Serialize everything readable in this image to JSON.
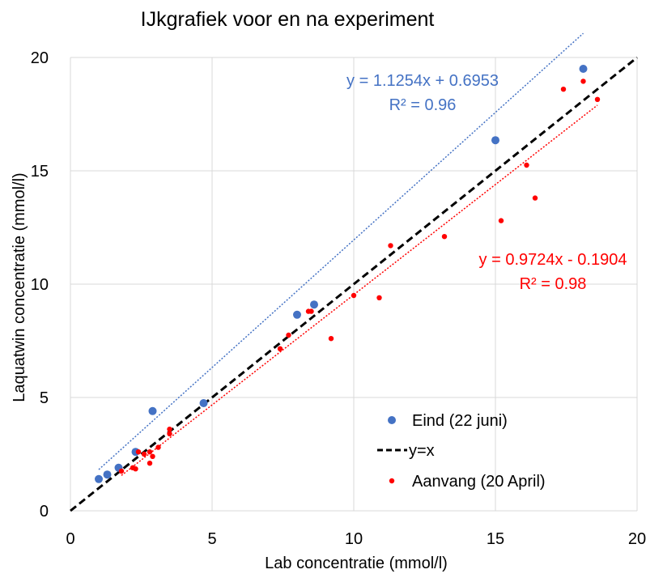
{
  "chart_data": {
    "type": "scatter",
    "title": "IJkgrafiek voor en na experiment",
    "xlabel": "Lab concentratie (mmol/l)",
    "ylabel": "Laquatwin concentratie (mmol/l)",
    "xlim": [
      0,
      20
    ],
    "ylim": [
      0,
      20
    ],
    "x_ticks": [
      "0",
      "5",
      "10",
      "15",
      "20"
    ],
    "y_ticks": [
      "0",
      "5",
      "10",
      "15",
      "20"
    ],
    "grid": true,
    "legend_position": "bottom-right",
    "series": [
      {
        "name": "Eind (22 juni)",
        "color": "#4472C4",
        "marker": "circle-large",
        "points": [
          [
            1.0,
            1.4
          ],
          [
            1.3,
            1.6
          ],
          [
            1.7,
            1.9
          ],
          [
            2.3,
            2.6
          ],
          [
            2.9,
            4.4
          ],
          [
            4.7,
            4.75
          ],
          [
            8.0,
            8.65
          ],
          [
            8.6,
            9.1
          ],
          [
            15.0,
            16.35
          ],
          [
            18.1,
            19.5
          ]
        ],
        "trendline": {
          "slope": 1.1254,
          "intercept": 0.6953,
          "x_range": [
            1.0,
            18.1
          ],
          "equation": "y = 1.1254x + 0.6953",
          "r2": "R² = 0.96"
        }
      },
      {
        "name": "y=x",
        "color": "#000000",
        "line": "dashed",
        "points": [
          [
            0,
            0
          ],
          [
            20,
            20
          ]
        ]
      },
      {
        "name": "Aanvang (20 April)",
        "color": "#FF0000",
        "marker": "circle-small",
        "points": [
          [
            1.8,
            1.75
          ],
          [
            2.2,
            1.9
          ],
          [
            2.3,
            1.85
          ],
          [
            2.4,
            2.6
          ],
          [
            2.6,
            2.5
          ],
          [
            2.8,
            2.1
          ],
          [
            2.8,
            2.6
          ],
          [
            2.9,
            2.4
          ],
          [
            3.1,
            2.8
          ],
          [
            3.5,
            3.4
          ],
          [
            3.5,
            3.6
          ],
          [
            7.4,
            7.15
          ],
          [
            7.7,
            7.75
          ],
          [
            8.4,
            8.8
          ],
          [
            8.5,
            8.8
          ],
          [
            9.2,
            7.6
          ],
          [
            10.0,
            9.5
          ],
          [
            10.9,
            9.4
          ],
          [
            11.3,
            11.7
          ],
          [
            13.2,
            12.1
          ],
          [
            15.2,
            12.8
          ],
          [
            16.1,
            15.25
          ],
          [
            16.4,
            13.8
          ],
          [
            17.4,
            18.6
          ],
          [
            18.1,
            18.95
          ],
          [
            18.6,
            18.15
          ]
        ],
        "trendline": {
          "slope": 0.9724,
          "intercept": -0.1904,
          "x_range": [
            1.8,
            18.6
          ],
          "equation": "y = 0.9724x - 0.1904",
          "r2": "R² = 0.98"
        }
      }
    ]
  }
}
